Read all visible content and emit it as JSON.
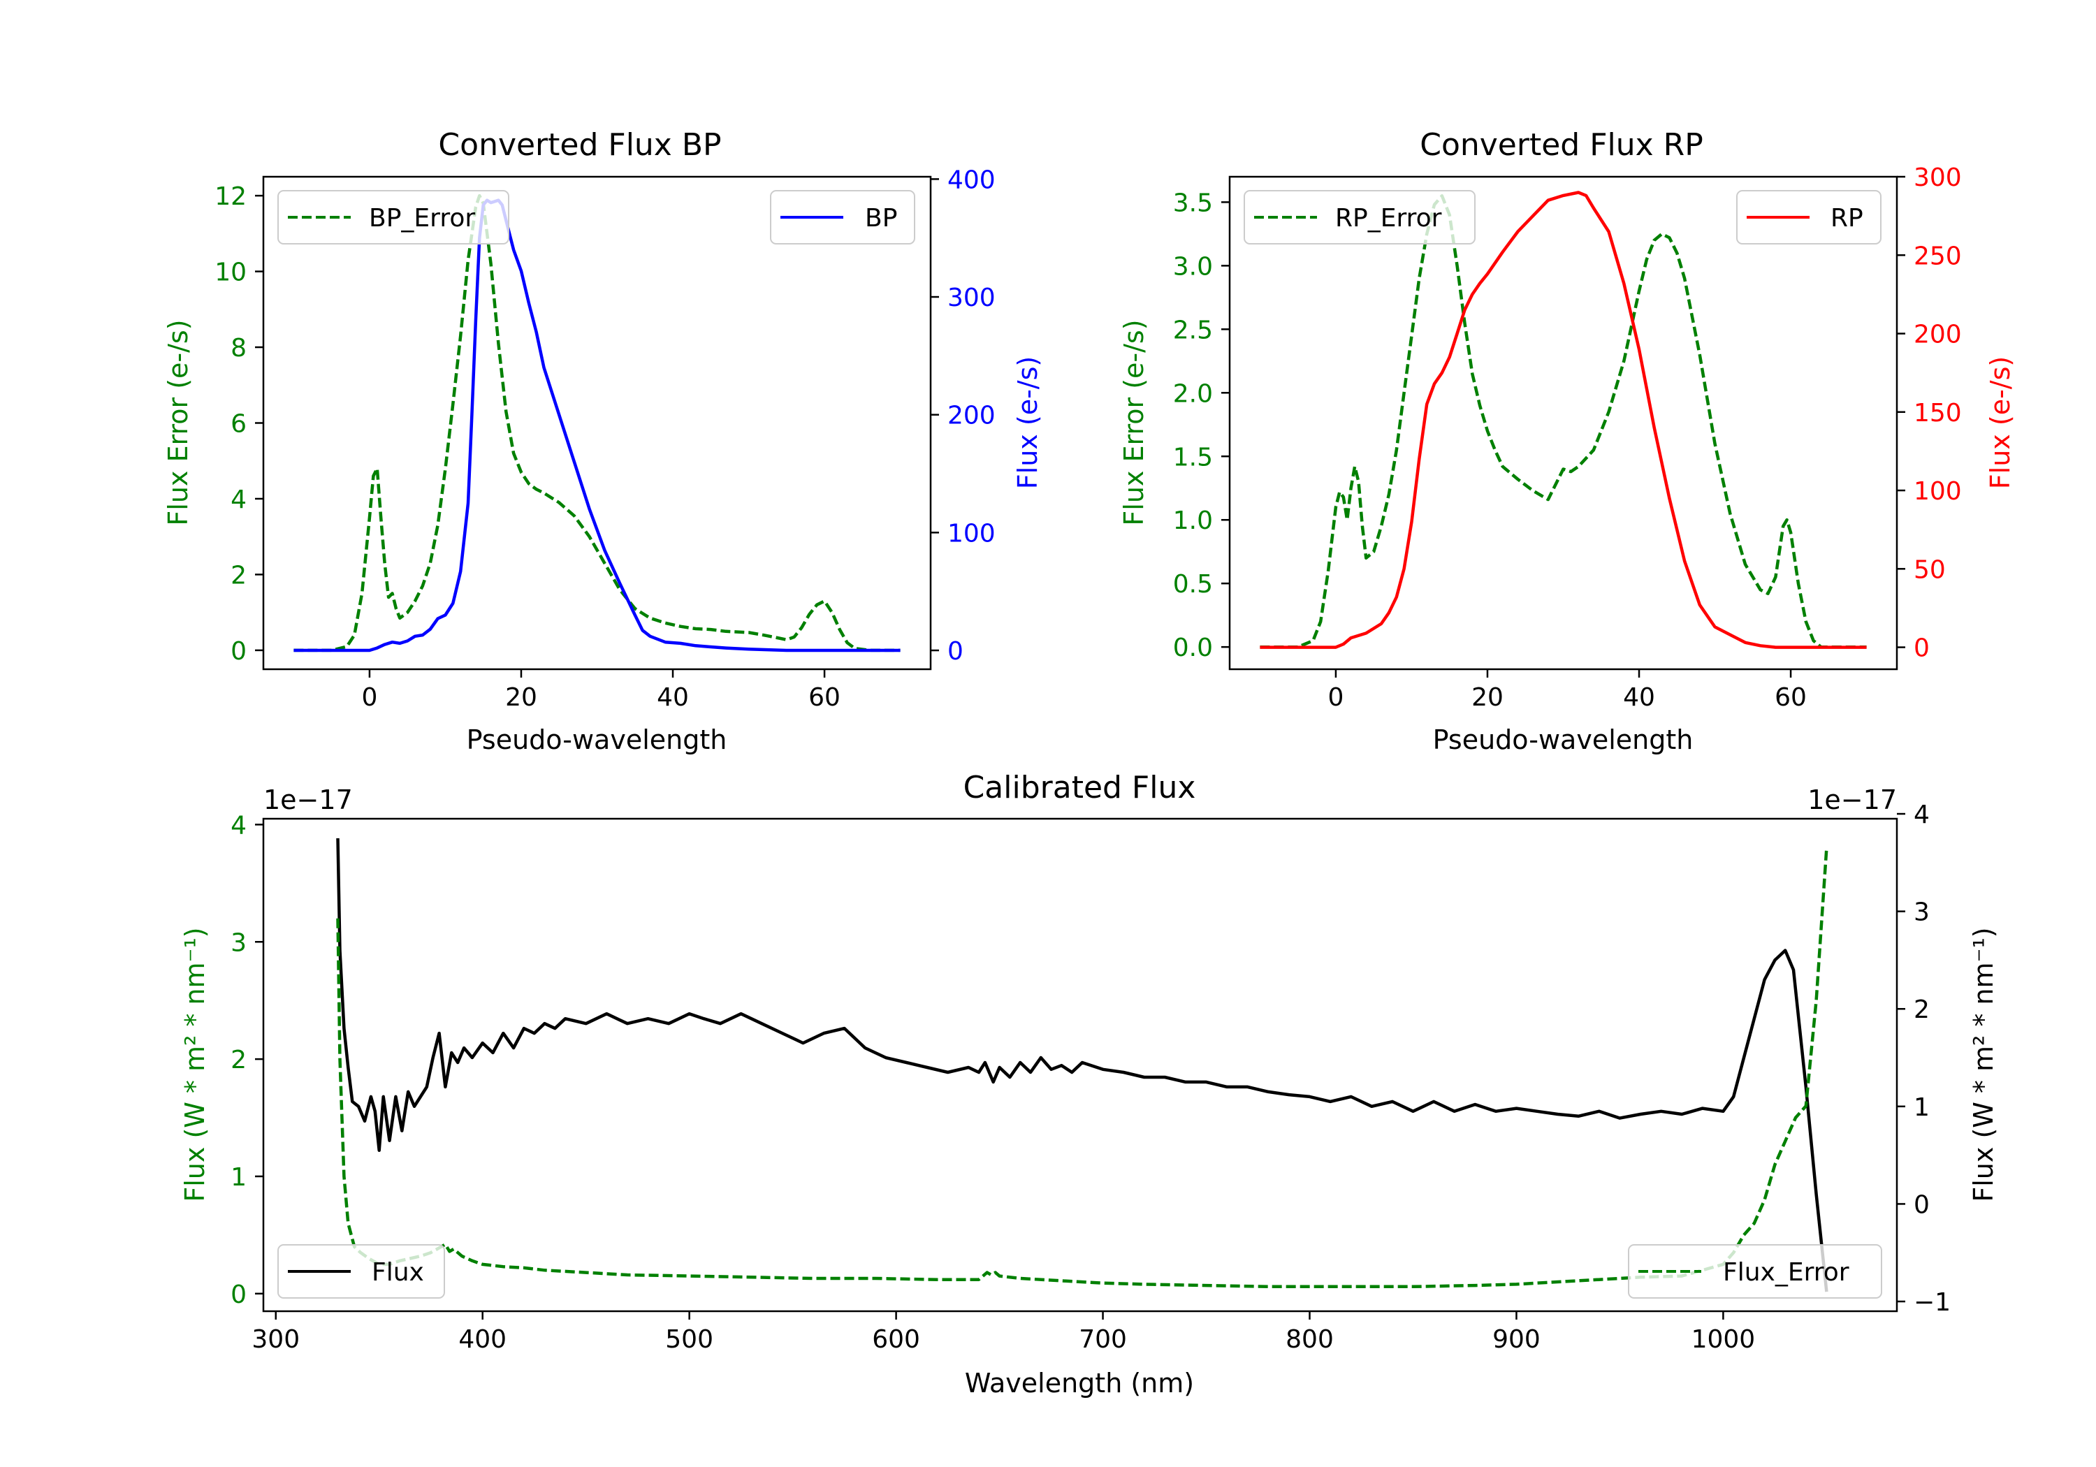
{
  "chart_data": [
    {
      "id": "bp",
      "type": "line",
      "title": "Converted Flux BP",
      "xlabel": "Pseudo-wavelength",
      "ylabel_left": "Flux Error (e-/s)",
      "ylabel_right": "Flux (e-/s)",
      "xlim": [
        -14,
        74
      ],
      "ylim_left": [
        -0.5,
        12.5
      ],
      "ylim_right": [
        -16,
        402
      ],
      "xticks": [
        0,
        20,
        40,
        60
      ],
      "yticks_left": [
        0,
        2,
        4,
        6,
        8,
        10,
        12
      ],
      "yticks_right": [
        0,
        100,
        200,
        300,
        400
      ],
      "left_color": "#008000",
      "right_color": "#0000ff",
      "legend_left": {
        "label": "BP_Error",
        "position": "upper left"
      },
      "legend_right": {
        "label": "BP",
        "position": "upper right"
      },
      "series": [
        {
          "name": "BP_Error",
          "axis": "left",
          "style": "dashed",
          "color": "#008000",
          "x": [
            -10,
            -5,
            -3,
            -2,
            -1,
            0,
            0.5,
            1,
            1.5,
            2,
            2.5,
            3,
            3.5,
            4,
            5,
            6,
            7,
            8,
            9,
            10,
            11,
            12,
            13,
            14,
            14.5,
            15,
            16,
            17,
            18,
            19,
            20,
            21,
            22,
            23,
            25,
            27,
            29,
            31,
            33,
            35,
            37,
            39,
            41,
            43,
            45,
            47,
            50,
            52,
            54,
            55,
            56,
            57,
            58,
            59,
            60,
            61,
            62,
            63,
            64,
            66,
            68,
            70
          ],
          "values": [
            0,
            0,
            0.1,
            0.4,
            1.5,
            3.5,
            4.6,
            4.8,
            3.5,
            2.3,
            1.4,
            1.5,
            1.1,
            0.85,
            1.0,
            1.3,
            1.7,
            2.3,
            3.3,
            4.8,
            6.5,
            8.3,
            10.3,
            11.7,
            12.0,
            11.8,
            10.2,
            8.1,
            6.3,
            5.2,
            4.7,
            4.4,
            4.25,
            4.15,
            3.9,
            3.55,
            3.0,
            2.3,
            1.6,
            1.1,
            0.85,
            0.72,
            0.63,
            0.57,
            0.55,
            0.5,
            0.47,
            0.4,
            0.32,
            0.28,
            0.35,
            0.6,
            0.95,
            1.2,
            1.3,
            1.0,
            0.55,
            0.2,
            0.05,
            0,
            0,
            0
          ]
        },
        {
          "name": "BP",
          "axis": "right",
          "style": "solid",
          "color": "#0000ff",
          "x": [
            -10,
            -5,
            -1,
            0,
            1,
            2,
            3,
            4,
            5,
            6,
            7,
            8,
            9,
            10,
            11,
            12,
            13,
            13.5,
            14,
            14.5,
            15,
            15.5,
            16,
            17,
            17.5,
            18,
            19,
            20,
            21,
            22,
            23,
            25,
            27,
            29,
            31,
            33,
            35,
            36,
            37,
            39,
            41,
            43,
            45,
            47,
            50,
            55,
            60,
            65,
            70
          ],
          "values": [
            0,
            0,
            0,
            0,
            2,
            5,
            7,
            6,
            8,
            12,
            13,
            18,
            27,
            30,
            40,
            67,
            125,
            200,
            280,
            350,
            378,
            382,
            380,
            382,
            378,
            365,
            340,
            322,
            295,
            270,
            240,
            200,
            160,
            120,
            85,
            57,
            30,
            17,
            12,
            7,
            6,
            4,
            3,
            2,
            1,
            0,
            0,
            0,
            0
          ]
        }
      ]
    },
    {
      "id": "rp",
      "type": "line",
      "title": "Converted Flux RP",
      "xlabel": "Pseudo-wavelength",
      "ylabel_left": "Flux Error (e-/s)",
      "ylabel_right": "Flux (e-/s)",
      "xlim": [
        -14,
        74
      ],
      "ylim_left": [
        -0.175,
        3.7
      ],
      "ylim_right": [
        -14,
        300
      ],
      "xticks": [
        0,
        20,
        40,
        60
      ],
      "yticks_left": [
        0.0,
        0.5,
        1.0,
        1.5,
        2.0,
        2.5,
        3.0,
        3.5
      ],
      "yticks_right": [
        0,
        50,
        100,
        150,
        200,
        250,
        300
      ],
      "left_color": "#008000",
      "right_color": "#ff0000",
      "legend_left": {
        "label": "RP_Error",
        "position": "upper left"
      },
      "legend_right": {
        "label": "RP",
        "position": "upper right"
      },
      "series": [
        {
          "name": "RP_Error",
          "axis": "left",
          "style": "dashed",
          "color": "#008000",
          "x": [
            -10,
            -5,
            -3,
            -2,
            -1,
            0,
            0.5,
            1,
            1.5,
            2,
            2.5,
            3,
            3.5,
            4,
            5,
            6,
            7,
            8,
            9,
            10,
            11,
            12,
            13,
            14,
            15,
            16,
            17,
            18,
            19,
            20,
            21,
            22,
            24,
            26,
            28,
            30,
            31,
            32,
            34,
            36,
            38,
            40,
            41,
            42,
            43,
            44,
            45,
            46,
            48,
            50,
            52,
            54,
            56,
            57,
            58,
            58.5,
            59,
            59.5,
            60,
            61,
            62,
            63,
            64,
            66,
            70
          ],
          "values": [
            0,
            0,
            0.05,
            0.2,
            0.6,
            1.1,
            1.22,
            1.18,
            1.0,
            1.25,
            1.42,
            1.3,
            0.95,
            0.7,
            0.75,
            0.95,
            1.2,
            1.55,
            2.0,
            2.45,
            2.9,
            3.25,
            3.48,
            3.55,
            3.4,
            3.0,
            2.55,
            2.15,
            1.9,
            1.7,
            1.55,
            1.42,
            1.32,
            1.23,
            1.16,
            1.4,
            1.38,
            1.42,
            1.55,
            1.85,
            2.25,
            2.8,
            3.05,
            3.2,
            3.25,
            3.22,
            3.1,
            2.9,
            2.3,
            1.6,
            1.05,
            0.65,
            0.45,
            0.42,
            0.55,
            0.75,
            0.95,
            1.0,
            0.9,
            0.5,
            0.2,
            0.05,
            0,
            0,
            0
          ]
        },
        {
          "name": "RP",
          "axis": "right",
          "style": "solid",
          "color": "#ff0000",
          "x": [
            -10,
            -5,
            -2,
            0,
            1,
            2,
            4,
            6,
            7,
            8,
            9,
            10,
            11,
            12,
            13,
            14,
            15,
            16,
            17,
            18,
            19,
            20,
            22,
            24,
            26,
            28,
            30,
            32,
            33,
            34,
            36,
            38,
            40,
            42,
            44,
            46,
            48,
            50,
            52,
            54,
            56,
            58,
            60,
            62,
            65,
            70
          ],
          "values": [
            0,
            0,
            0,
            0,
            2,
            6,
            9,
            15,
            22,
            32,
            50,
            80,
            120,
            155,
            168,
            175,
            185,
            200,
            215,
            225,
            232,
            238,
            252,
            265,
            275,
            285,
            288,
            290,
            288,
            280,
            265,
            232,
            190,
            140,
            95,
            55,
            27,
            13,
            8,
            3,
            1,
            0,
            0,
            0,
            0,
            0
          ]
        }
      ]
    },
    {
      "id": "calibrated",
      "type": "line",
      "title": "Calibrated Flux",
      "xlabel": "Wavelength (nm)",
      "ylabel_left": "Flux (W * m² * nm⁻¹)",
      "ylabel_right": "Flux (W * m² * nm⁻¹)",
      "offset_left": "1e−17",
      "offset_right": "1e−17",
      "xlim": [
        294,
        1084
      ],
      "ylim_left": [
        -0.15,
        4.05
      ],
      "ylim_right": [
        -1.1,
        3.95
      ],
      "xticks": [
        300,
        400,
        500,
        600,
        700,
        800,
        900,
        1000
      ],
      "yticks_left": [
        0,
        1,
        2,
        3,
        4
      ],
      "yticks_right": [
        -1,
        0,
        1,
        2,
        3,
        4
      ],
      "left_color": "#008000",
      "right_color": "#000000",
      "legend_left": {
        "label": "Flux",
        "position": "lower left"
      },
      "legend_right": {
        "label": "Flux_Error",
        "position": "lower right"
      },
      "series": [
        {
          "name": "Flux",
          "axis": "right",
          "style": "solid",
          "color": "#000000",
          "x": [
            330,
            331,
            333,
            335,
            337,
            340,
            343,
            346,
            348,
            350,
            352,
            355,
            358,
            361,
            364,
            367,
            370,
            373,
            376,
            379,
            382,
            385,
            388,
            391,
            395,
            400,
            405,
            410,
            415,
            420,
            425,
            430,
            435,
            440,
            450,
            460,
            470,
            480,
            490,
            500,
            507,
            515,
            525,
            535,
            545,
            555,
            565,
            575,
            585,
            595,
            605,
            615,
            625,
            635,
            640,
            643,
            647,
            650,
            655,
            660,
            665,
            670,
            675,
            680,
            685,
            690,
            700,
            710,
            720,
            730,
            740,
            750,
            760,
            770,
            780,
            790,
            800,
            810,
            820,
            830,
            840,
            850,
            860,
            870,
            880,
            890,
            900,
            910,
            920,
            930,
            940,
            950,
            960,
            970,
            980,
            990,
            1000,
            1005,
            1010,
            1015,
            1020,
            1025,
            1030,
            1034,
            1036,
            1040,
            1045,
            1050
          ],
          "values": [
            3.75,
            2.6,
            1.8,
            1.4,
            1.05,
            1.0,
            0.85,
            1.1,
            0.95,
            0.55,
            1.1,
            0.65,
            1.1,
            0.75,
            1.15,
            1.0,
            1.1,
            1.2,
            1.5,
            1.75,
            1.2,
            1.55,
            1.45,
            1.6,
            1.5,
            1.65,
            1.55,
            1.75,
            1.6,
            1.8,
            1.75,
            1.85,
            1.8,
            1.9,
            1.85,
            1.95,
            1.85,
            1.9,
            1.85,
            1.95,
            1.9,
            1.85,
            1.95,
            1.85,
            1.75,
            1.65,
            1.75,
            1.8,
            1.6,
            1.5,
            1.45,
            1.4,
            1.35,
            1.4,
            1.35,
            1.45,
            1.25,
            1.4,
            1.3,
            1.45,
            1.35,
            1.5,
            1.38,
            1.42,
            1.35,
            1.45,
            1.38,
            1.35,
            1.3,
            1.3,
            1.25,
            1.25,
            1.2,
            1.2,
            1.15,
            1.12,
            1.1,
            1.05,
            1.1,
            1.0,
            1.05,
            0.95,
            1.05,
            0.95,
            1.02,
            0.95,
            0.98,
            0.95,
            0.92,
            0.9,
            0.95,
            0.88,
            0.92,
            0.95,
            0.92,
            0.98,
            0.95,
            1.1,
            1.5,
            1.9,
            2.3,
            2.5,
            2.6,
            2.4,
            2.0,
            1.2,
            0.1,
            -0.9
          ]
        },
        {
          "name": "Flux_Error",
          "axis": "left",
          "style": "dashed",
          "color": "#008000",
          "x": [
            330,
            331,
            333,
            335,
            338,
            341,
            345,
            350,
            355,
            360,
            365,
            370,
            375,
            380,
            382,
            384,
            386,
            390,
            395,
            400,
            410,
            420,
            430,
            450,
            470,
            500,
            530,
            560,
            590,
            620,
            640,
            644,
            646,
            648,
            650,
            660,
            680,
            700,
            720,
            750,
            780,
            800,
            820,
            850,
            880,
            900,
            920,
            940,
            960,
            980,
            1000,
            1005,
            1010,
            1015,
            1020,
            1025,
            1030,
            1035,
            1040,
            1045,
            1050
          ],
          "values": [
            3.2,
            2.0,
            1.0,
            0.6,
            0.4,
            0.35,
            0.3,
            0.25,
            0.25,
            0.28,
            0.3,
            0.32,
            0.35,
            0.4,
            0.42,
            0.36,
            0.38,
            0.32,
            0.28,
            0.25,
            0.23,
            0.22,
            0.2,
            0.18,
            0.16,
            0.15,
            0.14,
            0.13,
            0.13,
            0.12,
            0.12,
            0.18,
            0.16,
            0.18,
            0.15,
            0.13,
            0.11,
            0.09,
            0.08,
            0.07,
            0.06,
            0.06,
            0.06,
            0.06,
            0.07,
            0.08,
            0.1,
            0.12,
            0.14,
            0.15,
            0.25,
            0.35,
            0.5,
            0.6,
            0.8,
            1.1,
            1.3,
            1.5,
            1.6,
            2.5,
            3.8
          ]
        }
      ]
    }
  ]
}
